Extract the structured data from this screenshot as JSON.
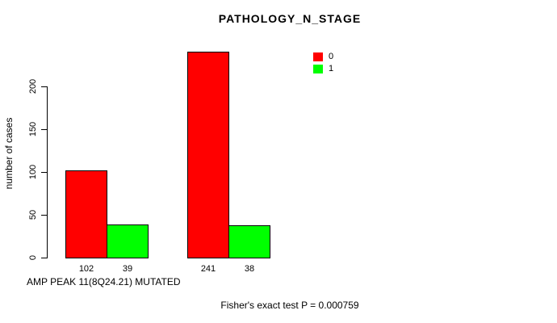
{
  "chart_data": {
    "type": "bar",
    "title": "PATHOLOGY_N_STAGE",
    "ylabel": "number of cases",
    "xlabel": "AMP PEAK 11(8Q24.21) MUTATED",
    "annotation": "Fisher's exact test P = 0.000759",
    "series": [
      {
        "name": "0",
        "color": "#ff0000",
        "values": [
          102,
          241
        ]
      },
      {
        "name": "1",
        "color": "#00ff00",
        "values": [
          39,
          38
        ]
      }
    ],
    "bar_value_labels": [
      "102",
      "39",
      "241",
      "38"
    ],
    "yticks": [
      0,
      50,
      100,
      150,
      200
    ],
    "ylim": [
      0,
      245
    ],
    "grid": false,
    "legend_position": "top-right",
    "background_color": "#ffffff",
    "axis_color": "#000000"
  }
}
